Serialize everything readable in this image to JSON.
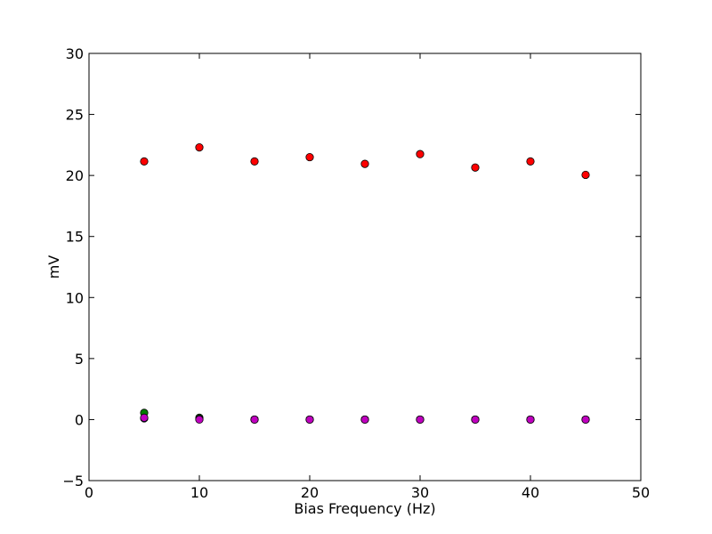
{
  "chart_data": {
    "type": "scatter",
    "title": "",
    "xlabel": "Bias Frequency (Hz)",
    "ylabel": "mV",
    "xlim": [
      0,
      50
    ],
    "ylim": [
      -5,
      30
    ],
    "xticks": [
      0,
      10,
      20,
      30,
      40,
      50
    ],
    "yticks": [
      -5,
      0,
      5,
      10,
      15,
      20,
      25,
      30
    ],
    "xtick_labels": [
      "0",
      "10",
      "20",
      "30",
      "40",
      "50"
    ],
    "ytick_labels": [
      "−5",
      "0",
      "5",
      "10",
      "15",
      "20",
      "25",
      "30"
    ],
    "grid": false,
    "legend": false,
    "series": [
      {
        "color": "#ff0000",
        "x": [
          5,
          10,
          15,
          20,
          25,
          30,
          35,
          40,
          45
        ],
        "y": [
          21.15,
          22.3,
          21.15,
          21.5,
          20.95,
          21.75,
          20.65,
          21.15,
          20.05
        ]
      },
      {
        "color": "#008000",
        "x": [
          5,
          10,
          15,
          20,
          25,
          30,
          35,
          40,
          45
        ],
        "y": [
          0.55,
          0.15,
          0.0,
          0.0,
          0.0,
          0.0,
          0.0,
          0.0,
          0.0
        ]
      },
      {
        "color": "#0000ff",
        "x": [
          5,
          10,
          15,
          20,
          25,
          30,
          35,
          40,
          45
        ],
        "y": [
          0.1,
          0.05,
          0.0,
          0.0,
          0.0,
          0.0,
          0.0,
          0.0,
          0.0
        ]
      },
      {
        "color": "#bf00bf",
        "x": [
          5,
          10,
          15,
          20,
          25,
          30,
          35,
          40,
          45
        ],
        "y": [
          0.15,
          0.0,
          0.0,
          0.0,
          0.0,
          0.0,
          0.0,
          0.0,
          0.0
        ]
      }
    ]
  }
}
